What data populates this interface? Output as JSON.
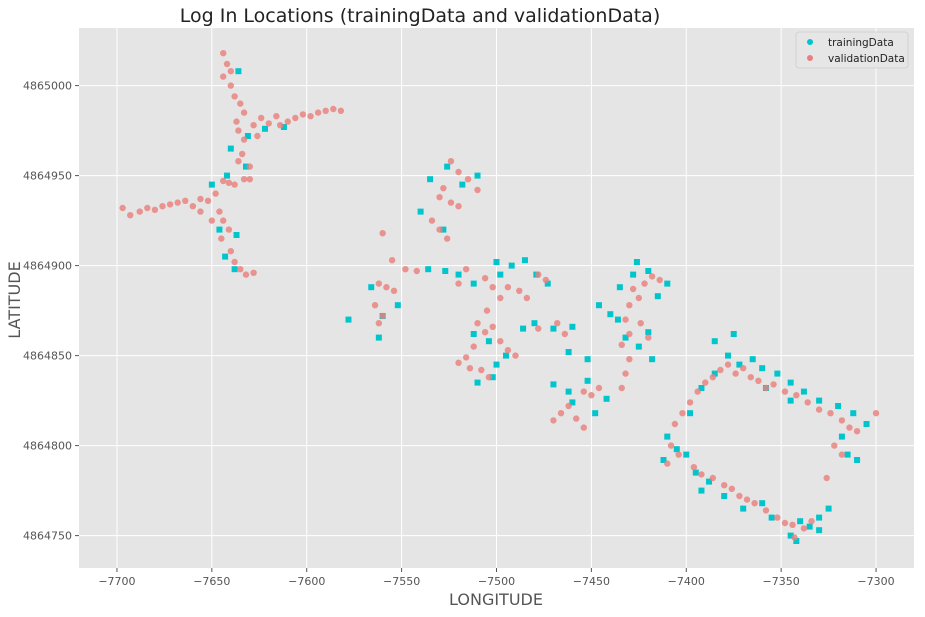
{
  "chart_data": {
    "type": "scatter",
    "title": "Log In Locations (trainingData and validationData)",
    "xlabel": "LONGITUDE",
    "ylabel": "LATITUDE",
    "xlim": [
      -7720,
      -7280
    ],
    "ylim": [
      4864732,
      4865032
    ],
    "xticks": [
      -7700,
      -7650,
      -7600,
      -7550,
      -7500,
      -7450,
      -7400,
      -7350,
      -7300
    ],
    "yticks": [
      4864750,
      4864800,
      4864850,
      4864900,
      4864950,
      4865000
    ],
    "grid": true,
    "style": "ggplot",
    "legend_position": "top-right",
    "series": [
      {
        "name": "trainingData",
        "color": "#00c5cd",
        "marker": "square",
        "points": [
          [
            -7636,
            4865008
          ],
          [
            -7631,
            4864972
          ],
          [
            -7640,
            4864965
          ],
          [
            -7622,
            4864976
          ],
          [
            -7612,
            4864977
          ],
          [
            -7650,
            4864945
          ],
          [
            -7642,
            4864950
          ],
          [
            -7632,
            4864955
          ],
          [
            -7646,
            4864920
          ],
          [
            -7637,
            4864917
          ],
          [
            -7643,
            4864905
          ],
          [
            -7638,
            4864898
          ],
          [
            -7526,
            4864955
          ],
          [
            -7535,
            4864948
          ],
          [
            -7518,
            4864945
          ],
          [
            -7510,
            4864950
          ],
          [
            -7540,
            4864930
          ],
          [
            -7528,
            4864920
          ],
          [
            -7536,
            4864898
          ],
          [
            -7527,
            4864897
          ],
          [
            -7520,
            4864895
          ],
          [
            -7512,
            4864890
          ],
          [
            -7578,
            4864870
          ],
          [
            -7566,
            4864888
          ],
          [
            -7560,
            4864872
          ],
          [
            -7562,
            4864860
          ],
          [
            -7552,
            4864878
          ],
          [
            -7500,
            4864902
          ],
          [
            -7498,
            4864895
          ],
          [
            -7492,
            4864900
          ],
          [
            -7485,
            4864903
          ],
          [
            -7479,
            4864895
          ],
          [
            -7473,
            4864890
          ],
          [
            -7512,
            4864862
          ],
          [
            -7504,
            4864858
          ],
          [
            -7495,
            4864850
          ],
          [
            -7486,
            4864865
          ],
          [
            -7470,
            4864865
          ],
          [
            -7480,
            4864868
          ],
          [
            -7462,
            4864852
          ],
          [
            -7452,
            4864848
          ],
          [
            -7460,
            4864866
          ],
          [
            -7500,
            4864845
          ],
          [
            -7510,
            4864835
          ],
          [
            -7502,
            4864838
          ],
          [
            -7470,
            4864834
          ],
          [
            -7462,
            4864830
          ],
          [
            -7452,
            4864836
          ],
          [
            -7460,
            4864824
          ],
          [
            -7448,
            4864818
          ],
          [
            -7442,
            4864826
          ],
          [
            -7435,
            4864888
          ],
          [
            -7428,
            4864895
          ],
          [
            -7426,
            4864902
          ],
          [
            -7420,
            4864897
          ],
          [
            -7415,
            4864883
          ],
          [
            -7410,
            4864890
          ],
          [
            -7440,
            4864873
          ],
          [
            -7446,
            4864878
          ],
          [
            -7436,
            4864870
          ],
          [
            -7432,
            4864860
          ],
          [
            -7425,
            4864855
          ],
          [
            -7420,
            4864863
          ],
          [
            -7418,
            4864848
          ],
          [
            -7410,
            4864805
          ],
          [
            -7405,
            4864798
          ],
          [
            -7412,
            4864792
          ],
          [
            -7400,
            4864795
          ],
          [
            -7395,
            4864785
          ],
          [
            -7388,
            4864780
          ],
          [
            -7392,
            4864775
          ],
          [
            -7380,
            4864772
          ],
          [
            -7370,
            4864765
          ],
          [
            -7360,
            4864768
          ],
          [
            -7355,
            4864760
          ],
          [
            -7345,
            4864750
          ],
          [
            -7340,
            4864758
          ],
          [
            -7335,
            4864755
          ],
          [
            -7330,
            4864760
          ],
          [
            -7325,
            4864765
          ],
          [
            -7342,
            4864747
          ],
          [
            -7330,
            4864753
          ],
          [
            -7392,
            4864832
          ],
          [
            -7385,
            4864840
          ],
          [
            -7378,
            4864850
          ],
          [
            -7372,
            4864845
          ],
          [
            -7365,
            4864848
          ],
          [
            -7360,
            4864843
          ],
          [
            -7352,
            4864840
          ],
          [
            -7345,
            4864835
          ],
          [
            -7338,
            4864830
          ],
          [
            -7330,
            4864825
          ],
          [
            -7320,
            4864822
          ],
          [
            -7312,
            4864818
          ],
          [
            -7305,
            4864812
          ],
          [
            -7318,
            4864805
          ],
          [
            -7315,
            4864795
          ],
          [
            -7310,
            4864792
          ],
          [
            -7375,
            4864862
          ],
          [
            -7385,
            4864858
          ],
          [
            -7358,
            4864832
          ],
          [
            -7345,
            4864825
          ],
          [
            -7398,
            4864818
          ]
        ]
      },
      {
        "name": "validationData",
        "color": "#e9807d",
        "marker": "circle",
        "points": [
          [
            -7697,
            4864932
          ],
          [
            -7693,
            4864928
          ],
          [
            -7688,
            4864930
          ],
          [
            -7684,
            4864932
          ],
          [
            -7680,
            4864931
          ],
          [
            -7676,
            4864933
          ],
          [
            -7672,
            4864934
          ],
          [
            -7668,
            4864935
          ],
          [
            -7664,
            4864936
          ],
          [
            -7660,
            4864933
          ],
          [
            -7656,
            4864937
          ],
          [
            -7652,
            4864936
          ],
          [
            -7648,
            4864940
          ],
          [
            -7644,
            4864947
          ],
          [
            -7641,
            4864946
          ],
          [
            -7638,
            4864945
          ],
          [
            -7633,
            4864948
          ],
          [
            -7656,
            4864930
          ],
          [
            -7644,
            4865018
          ],
          [
            -7642,
            4865012
          ],
          [
            -7640,
            4865008
          ],
          [
            -7644,
            4865005
          ],
          [
            -7640,
            4865000
          ],
          [
            -7638,
            4864994
          ],
          [
            -7635,
            4864990
          ],
          [
            -7633,
            4864985
          ],
          [
            -7637,
            4864980
          ],
          [
            -7636,
            4864975
          ],
          [
            -7633,
            4864970
          ],
          [
            -7634,
            4864962
          ],
          [
            -7636,
            4864958
          ],
          [
            -7630,
            4864955
          ],
          [
            -7630,
            4864948
          ],
          [
            -7628,
            4864978
          ],
          [
            -7624,
            4864982
          ],
          [
            -7620,
            4864979
          ],
          [
            -7616,
            4864983
          ],
          [
            -7610,
            4864980
          ],
          [
            -7606,
            4864982
          ],
          [
            -7602,
            4864984
          ],
          [
            -7598,
            4864983
          ],
          [
            -7594,
            4864985
          ],
          [
            -7590,
            4864986
          ],
          [
            -7586,
            4864987
          ],
          [
            -7582,
            4864986
          ],
          [
            -7614,
            4864978
          ],
          [
            -7626,
            4864972
          ],
          [
            -7646,
            4864930
          ],
          [
            -7644,
            4864925
          ],
          [
            -7641,
            4864920
          ],
          [
            -7645,
            4864915
          ],
          [
            -7640,
            4864908
          ],
          [
            -7638,
            4864902
          ],
          [
            -7635,
            4864898
          ],
          [
            -7632,
            4864895
          ],
          [
            -7628,
            4864896
          ],
          [
            -7650,
            4864925
          ],
          [
            -7524,
            4864958
          ],
          [
            -7520,
            4864952
          ],
          [
            -7515,
            4864948
          ],
          [
            -7528,
            4864943
          ],
          [
            -7524,
            4864935
          ],
          [
            -7520,
            4864933
          ],
          [
            -7530,
            4864938
          ],
          [
            -7534,
            4864925
          ],
          [
            -7530,
            4864920
          ],
          [
            -7526,
            4864915
          ],
          [
            -7510,
            4864942
          ],
          [
            -7560,
            4864918
          ],
          [
            -7555,
            4864903
          ],
          [
            -7548,
            4864898
          ],
          [
            -7542,
            4864897
          ],
          [
            -7562,
            4864890
          ],
          [
            -7558,
            4864888
          ],
          [
            -7554,
            4864886
          ],
          [
            -7564,
            4864878
          ],
          [
            -7562,
            4864868
          ],
          [
            -7560,
            4864872
          ],
          [
            -7516,
            4864898
          ],
          [
            -7520,
            4864890
          ],
          [
            -7506,
            4864893
          ],
          [
            -7502,
            4864888
          ],
          [
            -7498,
            4864882
          ],
          [
            -7494,
            4864888
          ],
          [
            -7488,
            4864886
          ],
          [
            -7484,
            4864882
          ],
          [
            -7505,
            4864875
          ],
          [
            -7510,
            4864868
          ],
          [
            -7506,
            4864863
          ],
          [
            -7502,
            4864866
          ],
          [
            -7498,
            4864858
          ],
          [
            -7494,
            4864853
          ],
          [
            -7490,
            4864850
          ],
          [
            -7512,
            4864855
          ],
          [
            -7516,
            4864849
          ],
          [
            -7520,
            4864846
          ],
          [
            -7514,
            4864843
          ],
          [
            -7508,
            4864842
          ],
          [
            -7504,
            4864838
          ],
          [
            -7478,
            4864895
          ],
          [
            -7474,
            4864892
          ],
          [
            -7468,
            4864868
          ],
          [
            -7464,
            4864862
          ],
          [
            -7478,
            4864865
          ],
          [
            -7454,
            4864830
          ],
          [
            -7450,
            4864828
          ],
          [
            -7446,
            4864832
          ],
          [
            -7462,
            4864822
          ],
          [
            -7458,
            4864815
          ],
          [
            -7454,
            4864810
          ],
          [
            -7466,
            4864818
          ],
          [
            -7470,
            4864814
          ],
          [
            -7428,
            4864887
          ],
          [
            -7425,
            4864882
          ],
          [
            -7422,
            4864890
          ],
          [
            -7418,
            4864894
          ],
          [
            -7414,
            4864892
          ],
          [
            -7430,
            4864878
          ],
          [
            -7432,
            4864870
          ],
          [
            -7430,
            4864862
          ],
          [
            -7434,
            4864856
          ],
          [
            -7430,
            4864848
          ],
          [
            -7432,
            4864840
          ],
          [
            -7434,
            4864832
          ],
          [
            -7424,
            4864868
          ],
          [
            -7420,
            4864860
          ],
          [
            -7402,
            4864818
          ],
          [
            -7398,
            4864824
          ],
          [
            -7394,
            4864830
          ],
          [
            -7390,
            4864835
          ],
          [
            -7386,
            4864838
          ],
          [
            -7382,
            4864842
          ],
          [
            -7378,
            4864845
          ],
          [
            -7374,
            4864840
          ],
          [
            -7370,
            4864843
          ],
          [
            -7366,
            4864838
          ],
          [
            -7362,
            4864836
          ],
          [
            -7358,
            4864832
          ],
          [
            -7354,
            4864834
          ],
          [
            -7348,
            4864830
          ],
          [
            -7342,
            4864828
          ],
          [
            -7336,
            4864824
          ],
          [
            -7330,
            4864820
          ],
          [
            -7324,
            4864818
          ],
          [
            -7318,
            4864814
          ],
          [
            -7314,
            4864810
          ],
          [
            -7310,
            4864808
          ],
          [
            -7300,
            4864818
          ],
          [
            -7322,
            4864800
          ],
          [
            -7318,
            4864795
          ],
          [
            -7326,
            4864782
          ],
          [
            -7408,
            4864800
          ],
          [
            -7404,
            4864795
          ],
          [
            -7396,
            4864788
          ],
          [
            -7392,
            4864784
          ],
          [
            -7386,
            4864782
          ],
          [
            -7380,
            4864778
          ],
          [
            -7376,
            4864776
          ],
          [
            -7372,
            4864772
          ],
          [
            -7368,
            4864770
          ],
          [
            -7364,
            4864768
          ],
          [
            -7358,
            4864764
          ],
          [
            -7352,
            4864760
          ],
          [
            -7348,
            4864757
          ],
          [
            -7344,
            4864756
          ],
          [
            -7338,
            4864754
          ],
          [
            -7334,
            4864758
          ],
          [
            -7343,
            4864749
          ],
          [
            -7410,
            4864790
          ],
          [
            -7406,
            4864812
          ]
        ]
      }
    ]
  }
}
